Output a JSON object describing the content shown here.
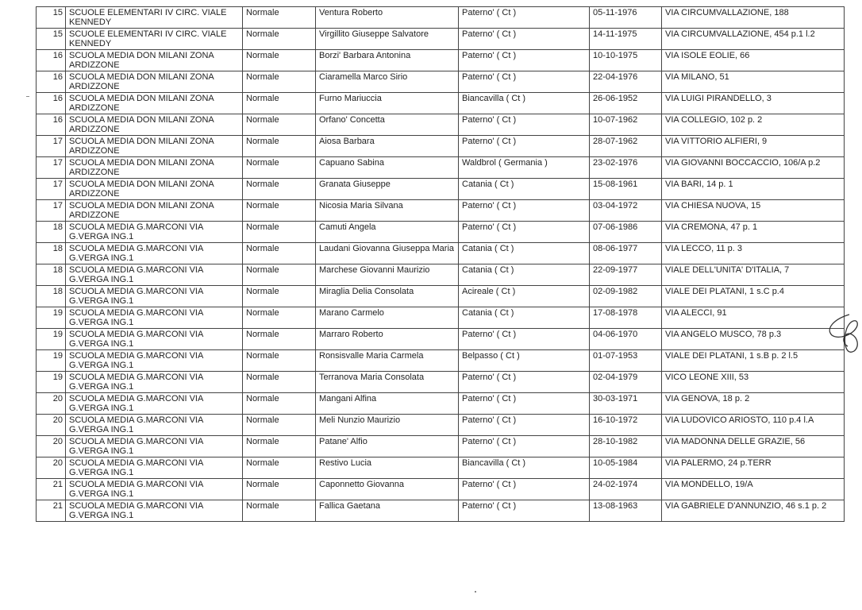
{
  "rows": [
    [
      "15",
      "SCUOLE ELEMENTARI IV CIRC. VIALE KENNEDY",
      "Normale",
      "Ventura Roberto",
      "Paterno' ( Ct )",
      "05-11-1976",
      "VIA CIRCUMVALLAZIONE, 188"
    ],
    [
      "15",
      "SCUOLE ELEMENTARI IV CIRC. VIALE KENNEDY",
      "Normale",
      "Virgillito Giuseppe Salvatore",
      "Paterno' ( Ct )",
      "14-11-1975",
      "VIA CIRCUMVALLAZIONE, 454 p.1 l.2"
    ],
    [
      "16",
      "SCUOLA MEDIA DON MILANI ZONA ARDIZZONE",
      "Normale",
      "Borzi' Barbara Antonina",
      "Paterno' ( Ct )",
      "10-10-1975",
      "VIA ISOLE EOLIE,  66"
    ],
    [
      "16",
      "SCUOLA MEDIA DON MILANI ZONA ARDIZZONE",
      "Normale",
      "Ciaramella Marco Sirio",
      "Paterno' ( Ct )",
      "22-04-1976",
      "VIA MILANO,  51"
    ],
    [
      "16",
      "SCUOLA MEDIA DON MILANI ZONA ARDIZZONE",
      "Normale",
      "Furno Mariuccia",
      "Biancavilla ( Ct )",
      "26-06-1952",
      "VIA LUIGI PIRANDELLO,   3"
    ],
    [
      "16",
      "SCUOLA MEDIA DON MILANI ZONA ARDIZZONE",
      "Normale",
      "Orfano' Concetta",
      "Paterno' ( Ct )",
      "10-07-1962",
      "VIA COLLEGIO, 102 p.  2"
    ],
    [
      "17",
      "SCUOLA MEDIA DON MILANI ZONA ARDIZZONE",
      "Normale",
      "Aiosa Barbara",
      "Paterno' ( Ct )",
      "28-07-1962",
      "VIA VITTORIO ALFIERI,  9"
    ],
    [
      "17",
      "SCUOLA MEDIA DON MILANI ZONA ARDIZZONE",
      "Normale",
      "Capuano Sabina",
      "Waldbrol ( Germania )",
      "23-02-1976",
      "VIA GIOVANNI BOCCACCIO, 106/A p.2"
    ],
    [
      "17",
      "SCUOLA MEDIA DON MILANI ZONA ARDIZZONE",
      "Normale",
      "Granata Giuseppe",
      "Catania ( Ct )",
      "15-08-1961",
      "VIA BARI,  14 p.  1"
    ],
    [
      "17",
      "SCUOLA MEDIA DON MILANI ZONA ARDIZZONE",
      "Normale",
      "Nicosia Maria Silvana",
      "Paterno' ( Ct )",
      "03-04-1972",
      "VIA CHIESA NUOVA,  15"
    ],
    [
      "18",
      "SCUOLA MEDIA G.MARCONI VIA G.VERGA  ING.1",
      "Normale",
      "Camuti Angela",
      "Paterno' ( Ct )",
      "07-06-1986",
      "VIA CREMONA,  47 p.  1"
    ],
    [
      "18",
      "SCUOLA MEDIA G.MARCONI VIA G.VERGA  ING.1",
      "Normale",
      "Laudani Giovanna Giuseppa Maria",
      "Catania ( Ct )",
      "08-06-1977",
      "VIA LECCO,  11 p.  3"
    ],
    [
      "18",
      "SCUOLA MEDIA G.MARCONI VIA G.VERGA  ING.1",
      "Normale",
      "Marchese Giovanni Maurizio",
      "Catania ( Ct )",
      "22-09-1977",
      "VIALE DELL'UNITA' D'ITALIA,  7"
    ],
    [
      "18",
      "SCUOLA MEDIA G.MARCONI VIA G.VERGA  ING.1",
      "Normale",
      "Miraglia Delia Consolata",
      "Acireale ( Ct )",
      "02-09-1982",
      "VIALE DEI PLATANI,  1 s.C p.4"
    ],
    [
      "19",
      "SCUOLA MEDIA G.MARCONI VIA G.VERGA  ING.1",
      "Normale",
      "Marano Carmelo",
      "Catania ( Ct )",
      "17-08-1978",
      "VIA ALECCI,  91"
    ],
    [
      "19",
      "SCUOLA MEDIA G.MARCONI VIA G.VERGA  ING.1",
      "Normale",
      "Marraro Roberto",
      "Paterno' ( Ct )",
      "04-06-1970",
      "VIA ANGELO MUSCO,  78 p.3"
    ],
    [
      "19",
      "SCUOLA MEDIA G.MARCONI VIA G.VERGA  ING.1",
      "Normale",
      "Ronsisvalle Maria Carmela",
      "Belpasso ( Ct )",
      "01-07-1953",
      "VIALE DEI PLATANI,  1 s.B p.  2 l.5"
    ],
    [
      "19",
      "SCUOLA MEDIA G.MARCONI VIA G.VERGA  ING.1",
      "Normale",
      "Terranova Maria Consolata",
      "Paterno' ( Ct )",
      "02-04-1979",
      "VICO LEONE XIII,  53"
    ],
    [
      "20",
      "SCUOLA MEDIA G.MARCONI VIA G.VERGA  ING.1",
      "Normale",
      "Mangani Alfina",
      "Paterno' ( Ct )",
      "30-03-1971",
      "VIA GENOVA,  18 p.  2"
    ],
    [
      "20",
      "SCUOLA MEDIA G.MARCONI VIA G.VERGA  ING.1",
      "Normale",
      "Meli Nunzio Maurizio",
      "Paterno' ( Ct )",
      "16-10-1972",
      "VIA LUDOVICO ARIOSTO, 110 p.4 l.A"
    ],
    [
      "20",
      "SCUOLA MEDIA G.MARCONI VIA G.VERGA  ING.1",
      "Normale",
      "Patane' Alfio",
      "Paterno' ( Ct )",
      "28-10-1982",
      "VIA MADONNA DELLE GRAZIE,  56"
    ],
    [
      "20",
      "SCUOLA MEDIA G.MARCONI VIA G.VERGA  ING.1",
      "Normale",
      "Restivo Lucia",
      "Biancavilla ( Ct )",
      "10-05-1984",
      "VIA PALERMO,  24 p.TERR"
    ],
    [
      "21",
      "SCUOLA MEDIA G.MARCONI VIA G.VERGA  ING.1",
      "Normale",
      "Caponnetto Giovanna",
      "Paterno' ( Ct )",
      "24-02-1974",
      "VIA MONDELLO,  19/A"
    ],
    [
      "21",
      "SCUOLA MEDIA G.MARCONI VIA G.VERGA  ING.1",
      "Normale",
      "Fallica Gaetana",
      "Paterno' ( Ct )",
      "13-08-1963",
      "VIA GABRIELE D'ANNUNZIO,  46 s.1 p. 2"
    ]
  ]
}
